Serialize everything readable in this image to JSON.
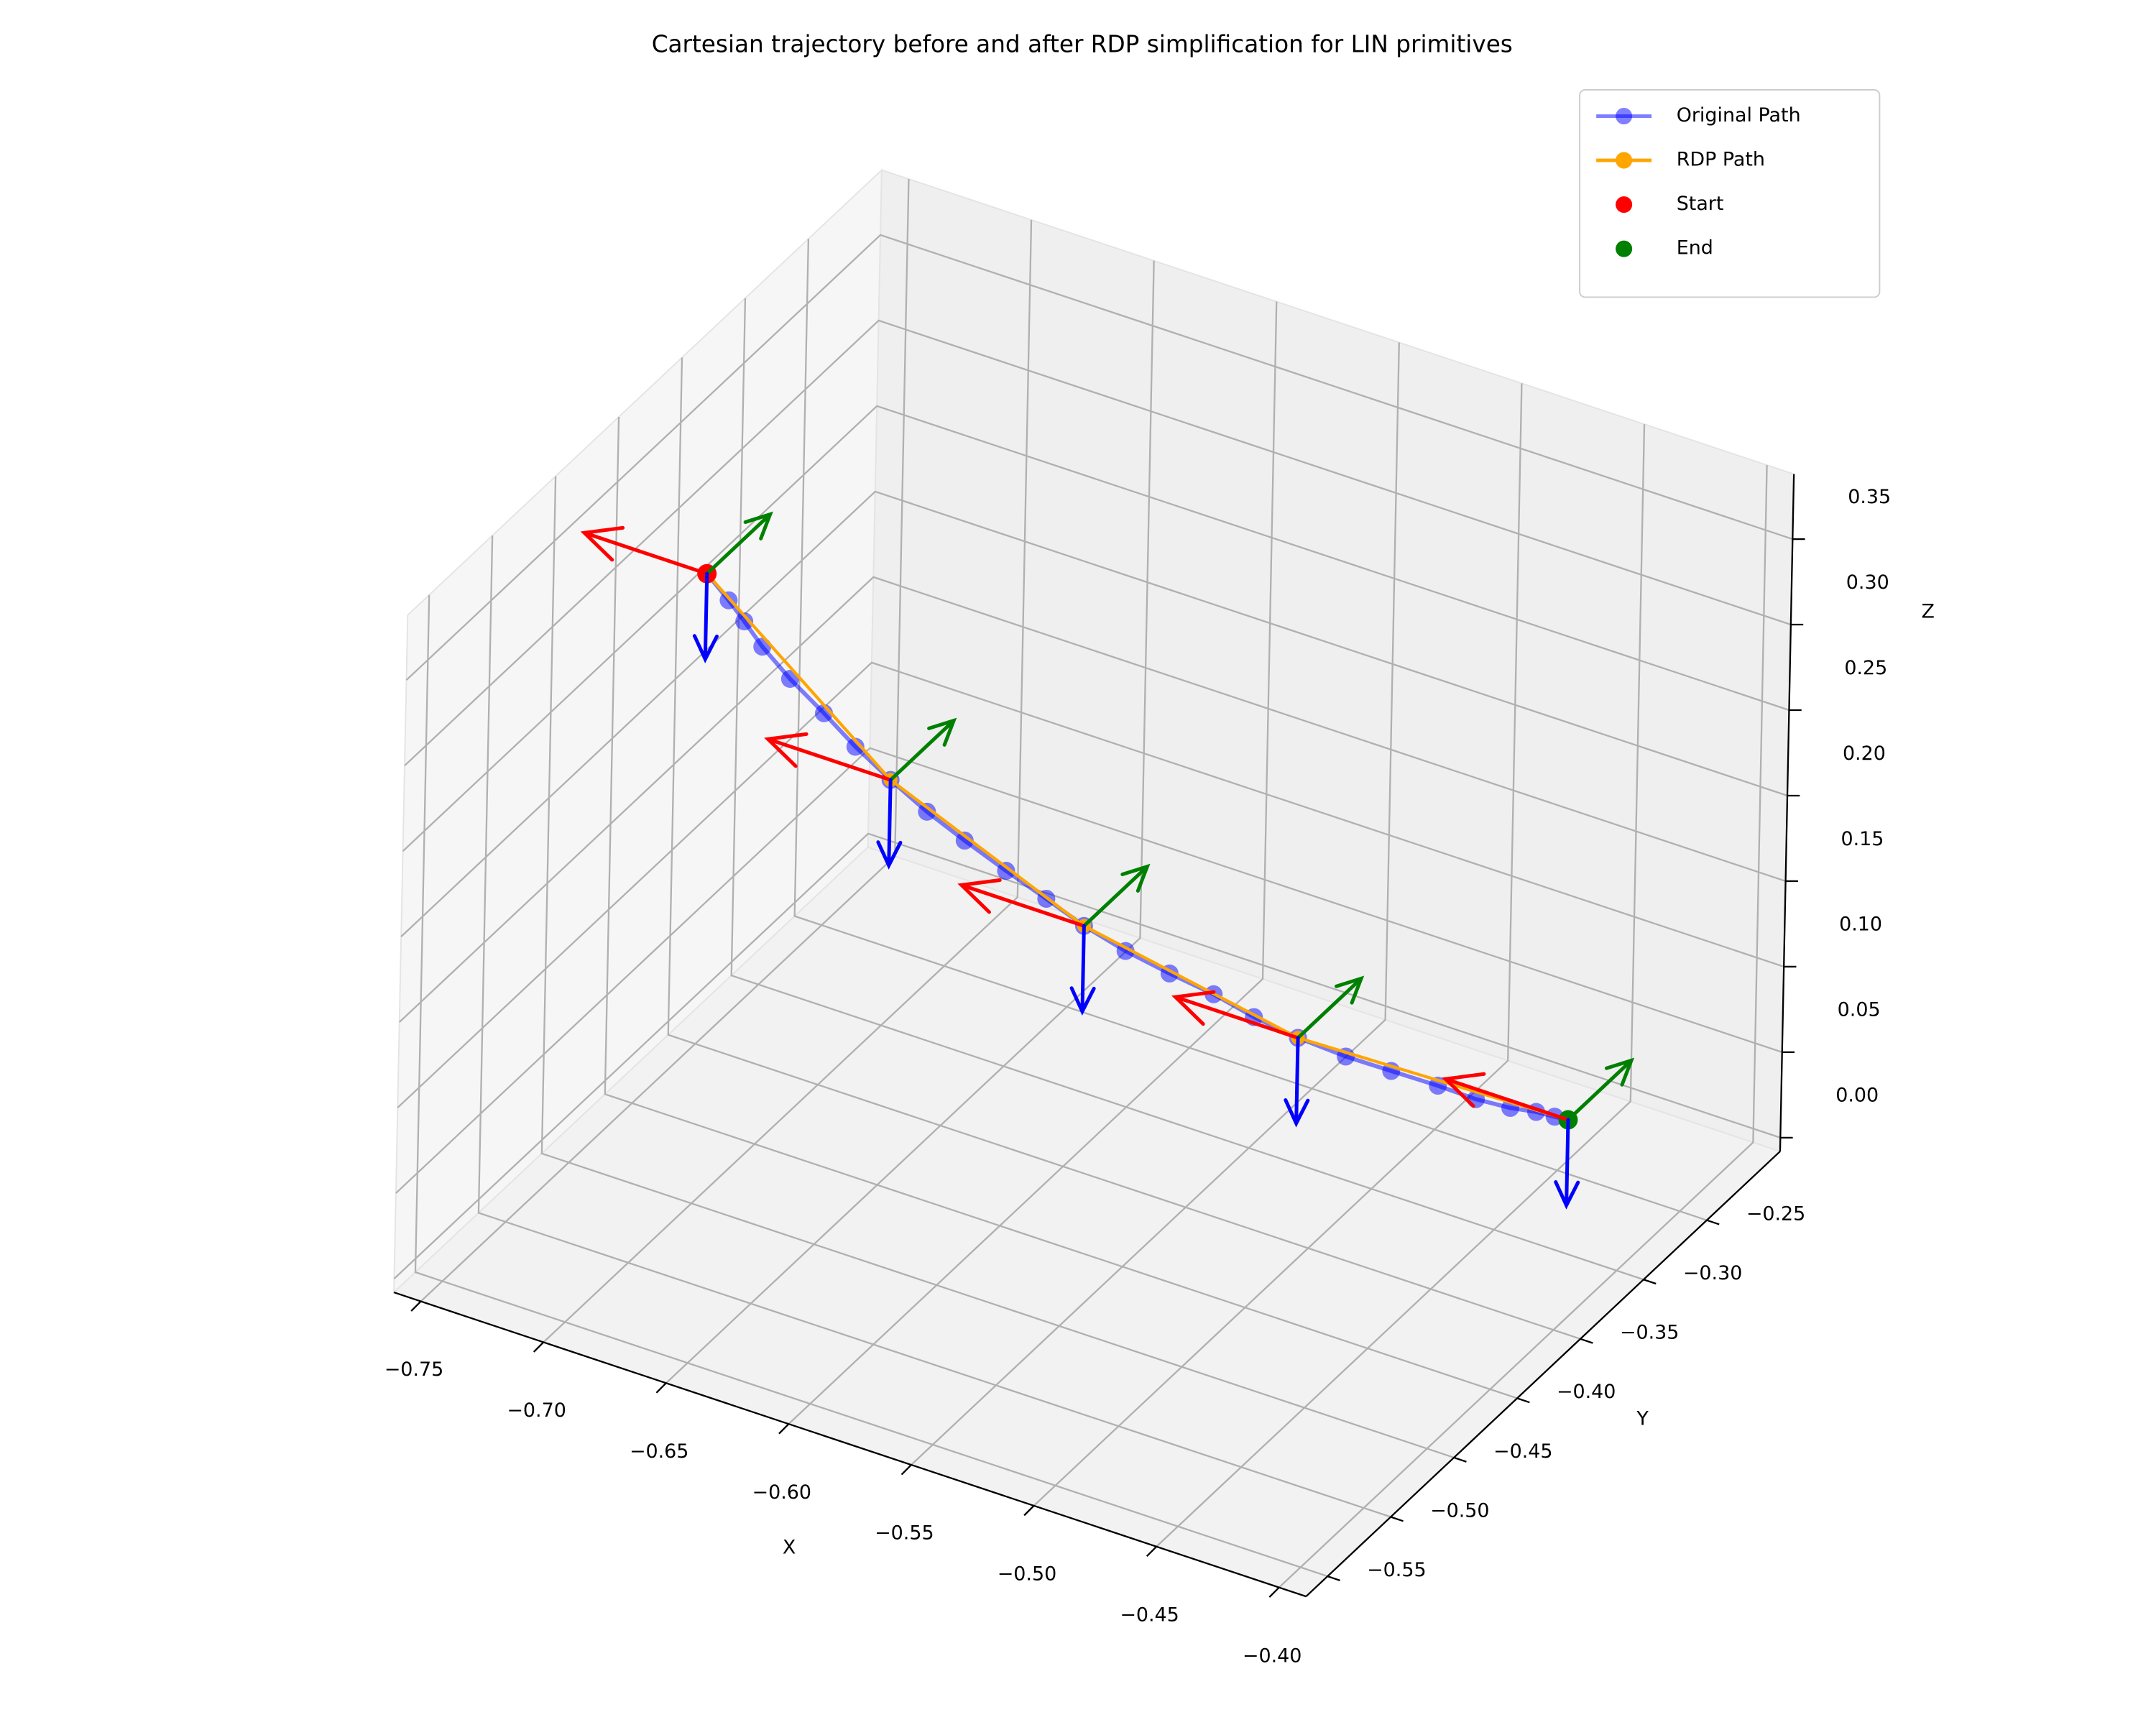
{
  "chart_data": {
    "type": "line3d",
    "title": "Cartesian trajectory before and after RDP simplification for LIN primitives",
    "xlabel": "X",
    "ylabel": "Y",
    "zlabel": "Z",
    "xlim": [
      -0.761,
      -0.389
    ],
    "ylim": [
      -0.567,
      -0.192
    ],
    "zlim": [
      -0.008,
      0.388
    ],
    "xticks": [
      {
        "value": -0.75,
        "label": "−0.75"
      },
      {
        "value": -0.7,
        "label": "−0.70"
      },
      {
        "value": -0.65,
        "label": "−0.65"
      },
      {
        "value": -0.6,
        "label": "−0.60"
      },
      {
        "value": -0.55,
        "label": "−0.55"
      },
      {
        "value": -0.5,
        "label": "−0.50"
      },
      {
        "value": -0.45,
        "label": "−0.45"
      },
      {
        "value": -0.4,
        "label": "−0.40"
      }
    ],
    "yticks": [
      {
        "value": -0.55,
        "label": "−0.55"
      },
      {
        "value": -0.5,
        "label": "−0.50"
      },
      {
        "value": -0.45,
        "label": "−0.45"
      },
      {
        "value": -0.4,
        "label": "−0.40"
      },
      {
        "value": -0.35,
        "label": "−0.35"
      },
      {
        "value": -0.3,
        "label": "−0.30"
      },
      {
        "value": -0.25,
        "label": "−0.25"
      }
    ],
    "zticks": [
      {
        "value": 0,
        "label": "0.00"
      },
      {
        "value": 0.05,
        "label": "0.05"
      },
      {
        "value": 0.1,
        "label": "0.10"
      },
      {
        "value": 0.15,
        "label": "0.15"
      },
      {
        "value": 0.2,
        "label": "0.20"
      },
      {
        "value": 0.25,
        "label": "0.25"
      },
      {
        "value": 0.3,
        "label": "0.30"
      },
      {
        "value": 0.35,
        "label": "0.35"
      }
    ],
    "grid": true,
    "legend": "upper right",
    "series": [
      {
        "name": "Original Path",
        "color": "blue",
        "alpha": 0.5,
        "x": [
          -0.724,
          -0.717,
          -0.712,
          -0.706,
          -0.697,
          -0.686,
          -0.676,
          -0.665,
          -0.653,
          -0.641,
          -0.628,
          -0.615,
          -0.603,
          -0.59,
          -0.576,
          -0.562,
          -0.549,
          -0.535,
          -0.52,
          -0.506,
          -0.491,
          -0.479,
          -0.468,
          -0.46,
          -0.454,
          -0.45
        ],
        "y": [
          -0.4,
          -0.396,
          -0.393,
          -0.39,
          -0.385,
          -0.379,
          -0.373,
          -0.366,
          -0.36,
          -0.353,
          -0.345,
          -0.338,
          -0.331,
          -0.323,
          -0.315,
          -0.307,
          -0.3,
          -0.292,
          -0.283,
          -0.274,
          -0.266,
          -0.259,
          -0.253,
          -0.248,
          -0.245,
          -0.242
        ],
        "z": [
          0.314,
          0.299,
          0.287,
          0.273,
          0.255,
          0.236,
          0.217,
          0.198,
          0.181,
          0.165,
          0.148,
          0.133,
          0.118,
          0.104,
          0.092,
          0.081,
          0.069,
          0.058,
          0.048,
          0.04,
          0.033,
          0.026,
          0.022,
          0.02,
          0.018,
          0.016
        ]
      },
      {
        "name": "RDP Path",
        "color": "orange",
        "alpha": 1,
        "x": [
          -0.724,
          -0.665,
          -0.603,
          -0.535,
          -0.45
        ],
        "y": [
          -0.4,
          -0.366,
          -0.331,
          -0.292,
          -0.242
        ],
        "z": [
          0.314,
          0.198,
          0.118,
          0.058,
          0.016
        ]
      }
    ],
    "points": [
      {
        "name": "Start",
        "color": "red",
        "x": -0.724,
        "y": -0.4,
        "z": 0.314
      },
      {
        "name": "End",
        "color": "green",
        "x": -0.45,
        "y": -0.242,
        "z": 0.016
      }
    ],
    "frame_arrows": [
      {
        "color": "red",
        "vector": [
          -0.05,
          0,
          0
        ]
      },
      {
        "color": "green",
        "vector": [
          0,
          0.05,
          0
        ]
      },
      {
        "color": "blue",
        "vector": [
          0,
          0,
          -0.05
        ]
      }
    ]
  }
}
